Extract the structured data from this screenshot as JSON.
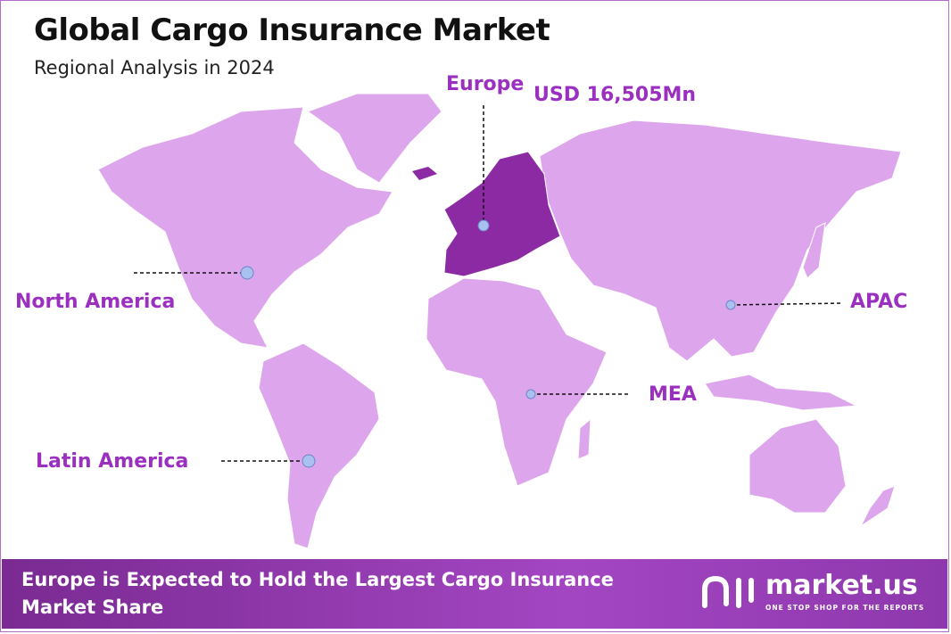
{
  "header": {
    "title": "Global Cargo Insurance Market",
    "subtitle": "Regional Analysis in 2024"
  },
  "regions": [
    {
      "label": "Europe",
      "value_label": "USD 16,505Mn"
    },
    {
      "label": "North America"
    },
    {
      "label": "APAC"
    },
    {
      "label": "MEA"
    },
    {
      "label": "Latin America"
    }
  ],
  "footer": {
    "text": "Europe is Expected to Hold the Largest Cargo Insurance Market Share"
  },
  "logo": {
    "name": "market.us",
    "tagline": "ONE STOP SHOP FOR THE REPORTS"
  }
}
